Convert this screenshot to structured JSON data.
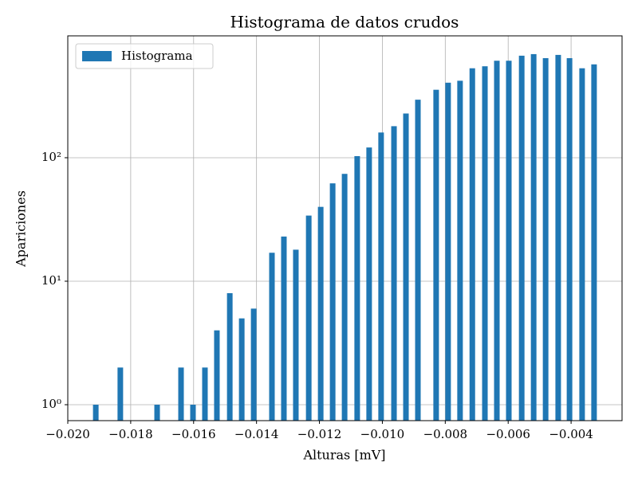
{
  "chart_data": {
    "type": "bar",
    "title": "Histograma de datos crudos",
    "x_label": "Alturas [mV]",
    "y_label": "Apariciones",
    "log_y": true,
    "grid": true,
    "legend": "upper left",
    "xlim": [
      -0.02,
      -0.00238
    ],
    "ylim": [
      0.743,
      970
    ],
    "xticks": [
      {
        "value": -0.02,
        "label": "−0.020"
      },
      {
        "value": -0.018,
        "label": "−0.018"
      },
      {
        "value": -0.016,
        "label": "−0.016"
      },
      {
        "value": -0.014,
        "label": "−0.014"
      },
      {
        "value": -0.012,
        "label": "−0.012"
      },
      {
        "value": -0.01,
        "label": "−0.010"
      },
      {
        "value": -0.008,
        "label": "−0.008"
      },
      {
        "value": -0.006,
        "label": "−0.006"
      },
      {
        "value": -0.004,
        "label": "−0.004"
      }
    ],
    "yticks": [
      {
        "value": 1,
        "label": "10⁰"
      },
      {
        "value": 10,
        "label": "10¹"
      },
      {
        "value": 100,
        "label": "10²"
      }
    ],
    "x": [
      -0.01911,
      -0.01833,
      -0.01716,
      -0.0164,
      -0.01602,
      -0.01564,
      -0.01526,
      -0.01485,
      -0.01447,
      -0.01409,
      -0.01351,
      -0.01313,
      -0.01275,
      -0.01234,
      -0.01196,
      -0.01158,
      -0.0112,
      -0.0108,
      -0.01042,
      -0.01004,
      -0.00963,
      -0.00925,
      -0.00887,
      -0.00829,
      -0.00791,
      -0.00753,
      -0.00714,
      -0.00674,
      -0.00636,
      -0.00598,
      -0.00557,
      -0.00519,
      -0.00481,
      -0.00441,
      -0.00405,
      -0.00365,
      -0.00327
    ],
    "series": [
      {
        "name": "Histograma",
        "color": "#1f77b4",
        "values": [
          1,
          2,
          1,
          2,
          1,
          2,
          4,
          8,
          5,
          6,
          17,
          23,
          18,
          34,
          40,
          62,
          74,
          103,
          121,
          160,
          180,
          228,
          295,
          355,
          405,
          420,
          530,
          550,
          610,
          610,
          670,
          690,
          640,
          680,
          640,
          530,
          570
        ]
      }
    ]
  }
}
